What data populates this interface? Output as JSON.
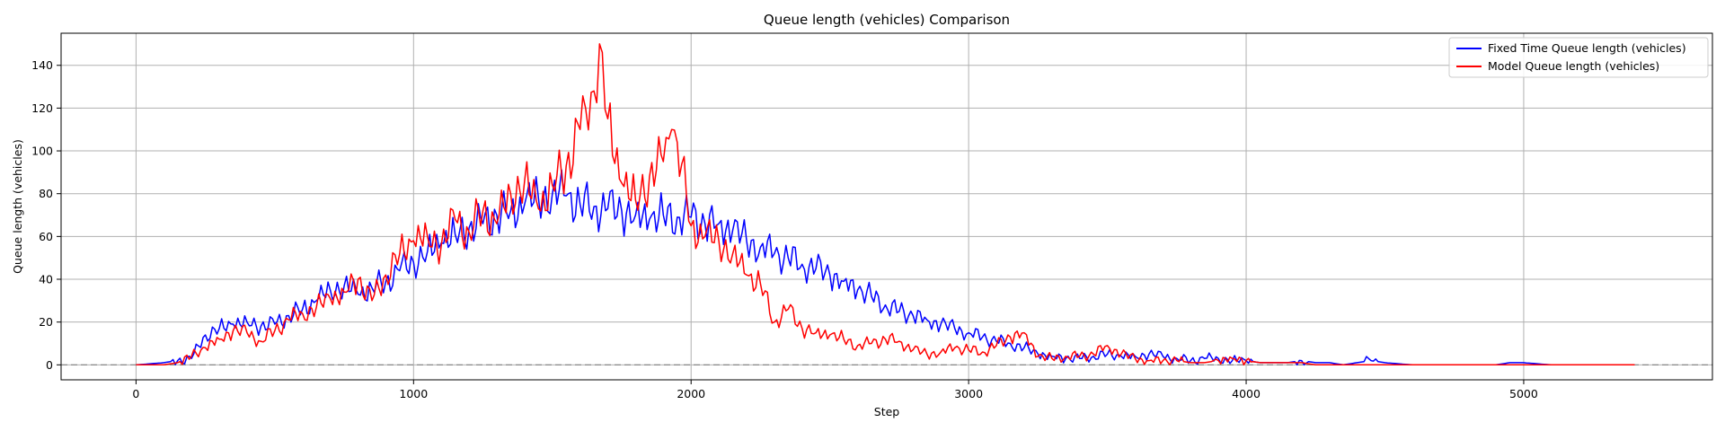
{
  "chart_data": {
    "type": "line",
    "title": "Queue length (vehicles) Comparison",
    "xlabel": "Step",
    "ylabel": "Queue length (vehicles)",
    "xlim": [
      -270,
      5680
    ],
    "ylim": [
      -7,
      155
    ],
    "xticks": [
      0,
      1000,
      2000,
      3000,
      4000,
      5000
    ],
    "yticks": [
      0,
      20,
      40,
      60,
      80,
      100,
      120,
      140
    ],
    "grid": true,
    "legend_position": "top-right",
    "reference_line": {
      "y": 0,
      "style": "dashed",
      "color": "#808080"
    },
    "series": [
      {
        "name": "Fixed Time Queue length (vehicles)",
        "color": "#0000ff",
        "x": [
          0,
          100,
          150,
          200,
          250,
          300,
          350,
          400,
          450,
          500,
          550,
          600,
          650,
          700,
          750,
          800,
          850,
          900,
          950,
          1000,
          1050,
          1100,
          1150,
          1200,
          1250,
          1300,
          1350,
          1400,
          1450,
          1500,
          1550,
          1600,
          1650,
          1700,
          1750,
          1800,
          1850,
          1900,
          1950,
          2000,
          2050,
          2100,
          2150,
          2200,
          2250,
          2300,
          2350,
          2400,
          2450,
          2500,
          2550,
          2600,
          2650,
          2700,
          2750,
          2800,
          2850,
          2900,
          2950,
          3000,
          3050,
          3100,
          3150,
          3200,
          3250,
          3300,
          3350,
          3400,
          3450,
          3500,
          3550,
          3600,
          3650,
          3700,
          3750,
          3800,
          3850,
          3900,
          3950,
          4000,
          4050,
          4100,
          4150,
          4200,
          4250,
          4300,
          4350,
          4400,
          4450,
          4500,
          4600,
          4700,
          4800,
          4900,
          4950,
          5000,
          5100,
          5200,
          5300,
          5400
        ],
        "y": [
          0,
          1,
          2,
          3,
          14,
          17,
          19,
          20,
          18,
          19,
          23,
          26,
          30,
          35,
          37,
          33,
          36,
          39,
          44,
          48,
          53,
          57,
          61,
          64,
          66,
          70,
          72,
          75,
          78,
          80,
          79,
          75,
          74,
          73,
          72,
          70,
          68,
          70,
          69,
          69,
          66,
          66,
          63,
          58,
          55,
          52,
          50,
          47,
          45,
          42,
          39,
          35,
          32,
          28,
          25,
          23,
          21,
          19,
          17,
          15,
          13,
          11,
          10,
          8,
          5,
          4,
          3,
          3,
          4,
          5,
          4,
          4,
          5,
          4,
          3,
          2,
          3,
          3,
          2,
          2,
          1,
          1,
          1,
          2,
          1,
          1,
          0,
          1,
          2,
          1,
          0,
          0,
          0,
          0,
          1,
          1,
          0,
          0,
          0,
          0
        ]
      },
      {
        "name": "Model Queue length (vehicles)",
        "color": "#ff0000",
        "x": [
          0,
          100,
          150,
          200,
          250,
          300,
          350,
          400,
          450,
          500,
          550,
          600,
          650,
          700,
          750,
          800,
          850,
          900,
          950,
          1000,
          1050,
          1100,
          1150,
          1200,
          1250,
          1300,
          1350,
          1400,
          1450,
          1500,
          1550,
          1600,
          1620,
          1650,
          1670,
          1700,
          1750,
          1800,
          1850,
          1900,
          1930,
          1950,
          2000,
          2050,
          2100,
          2150,
          2200,
          2250,
          2300,
          2350,
          2400,
          2450,
          2500,
          2550,
          2600,
          2650,
          2700,
          2750,
          2800,
          2850,
          2900,
          2950,
          3000,
          3050,
          3100,
          3150,
          3200,
          3250,
          3300,
          3350,
          3400,
          3450,
          3500,
          3550,
          3600,
          3650,
          3700,
          3750,
          3800,
          3850,
          3900,
          3950,
          4000,
          4050,
          4100,
          4150,
          4200,
          4250,
          4300,
          4350,
          4400,
          4450,
          4500,
          4600,
          4700,
          4800,
          4900,
          5000,
          5100,
          5200,
          5300,
          5400
        ],
        "y": [
          0,
          0,
          1,
          4,
          8,
          12,
          16,
          15,
          11,
          16,
          21,
          24,
          27,
          31,
          34,
          40,
          30,
          42,
          52,
          58,
          60,
          56,
          68,
          62,
          72,
          66,
          80,
          86,
          73,
          84,
          93,
          110,
          120,
          128,
          150,
          115,
          85,
          77,
          88,
          95,
          110,
          104,
          65,
          60,
          58,
          52,
          42,
          38,
          20,
          26,
          17,
          15,
          14,
          12,
          9,
          10,
          12,
          11,
          7,
          5,
          6,
          8,
          7,
          6,
          9,
          13,
          15,
          4,
          3,
          4,
          4,
          5,
          9,
          5,
          3,
          2,
          2,
          2,
          1,
          1,
          2,
          3,
          2,
          1,
          1,
          1,
          1,
          0,
          0,
          0,
          0,
          0,
          0,
          0,
          0,
          0,
          0,
          0,
          0,
          0,
          0,
          0
        ]
      }
    ]
  }
}
